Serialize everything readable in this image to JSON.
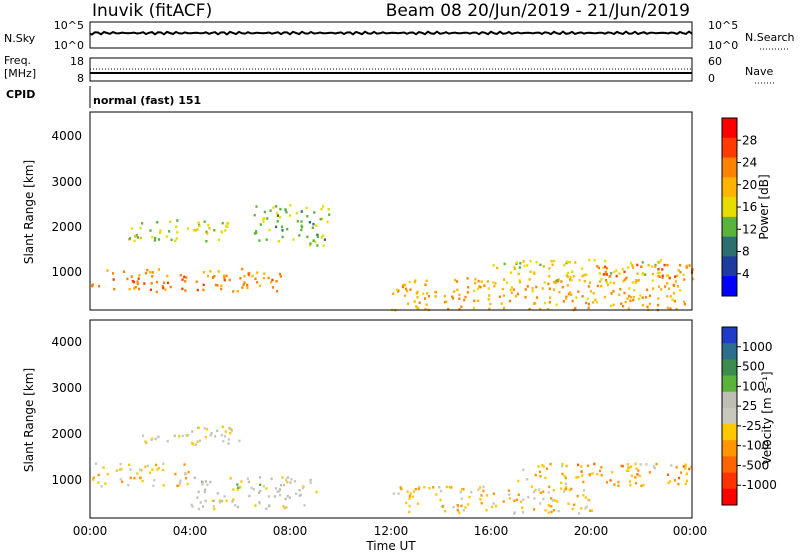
{
  "header": {
    "radar": "Inuvik (fitACF)",
    "beam_date": "Beam 08  20/Jun/2019 - 21/Jun/2019"
  },
  "summary": {
    "nsky_label": "N.Sky",
    "nsky_ticks": [
      "10^5",
      "10^0"
    ],
    "nsearch_label": "N.Search",
    "nsearch_ticks": [
      "10^5",
      "10^0"
    ],
    "freq_label_1": "Freq.",
    "freq_label_2": "[MHz]",
    "freq_ticks": [
      "18",
      "8"
    ],
    "nave_label": "Nave",
    "nave_ticks": [
      "60",
      "0"
    ],
    "cpid_label": "CPID",
    "cpid_value": "normal (fast) 151"
  },
  "axes": {
    "ylabel": "Slant Range [km]",
    "xlabel": "Time UT",
    "x_ticks": [
      "00:00",
      "04:00",
      "08:00",
      "12:00",
      "16:00",
      "20:00",
      "00:00"
    ],
    "y_ticks": [
      "4000",
      "3000",
      "2000",
      "1000"
    ]
  },
  "colorbars": {
    "power": {
      "label": "Power [dB]",
      "ticks": [
        "28",
        "24",
        "20",
        "16",
        "12",
        "8",
        "4"
      ],
      "colors": [
        "#ff0000",
        "#ff3c00",
        "#ff8200",
        "#ffb400",
        "#e6dc00",
        "#5ab43c",
        "#2d6e6e",
        "#1e3ca0",
        "#0000ff"
      ]
    },
    "velocity": {
      "label": "Velocity [m s⁻¹]",
      "ticks": [
        "1000",
        "500",
        "100",
        "25",
        "-25",
        "-100",
        "-500",
        "-1000"
      ],
      "colors": [
        "#1e3cc8",
        "#2d6e8c",
        "#3c8c50",
        "#5ab43c",
        "#bebeb4",
        "#c8c8be",
        "#ffc800",
        "#ff9600",
        "#ff6400",
        "#ff3200",
        "#ff0000"
      ]
    }
  },
  "chart_data": [
    {
      "type": "line",
      "title": "N.Sky / N.Search",
      "y_scale": "log",
      "ylim": [
        1,
        100000
      ],
      "x": [
        "00:00",
        "24:00"
      ],
      "series": [
        {
          "name": "N.Sky",
          "values": [
            100,
            100
          ]
        },
        {
          "name": "N.Search",
          "values": [
            100,
            100
          ]
        }
      ]
    },
    {
      "type": "line",
      "title": "Freq. / Nave",
      "ylim_left": [
        8,
        18
      ],
      "ylim_right": [
        0,
        60
      ],
      "series": [
        {
          "name": "Freq. [MHz]",
          "values": [
            10.5,
            10.5
          ]
        },
        {
          "name": "Nave",
          "values": [
            13,
            13
          ]
        }
      ]
    },
    {
      "type": "heatmap",
      "title": "Power [dB]",
      "xlim_hours": [
        0,
        24
      ],
      "ylim_km": [
        180,
        4500
      ],
      "value_range": [
        0,
        30
      ],
      "patches": [
        {
          "t0": 0.0,
          "t1": 7.6,
          "r0": 600,
          "r1": 1100,
          "v": 22
        },
        {
          "t0": 1.5,
          "t1": 5.5,
          "r0": 1700,
          "r1": 2200,
          "v": 14
        },
        {
          "t0": 6.5,
          "t1": 9.5,
          "r0": 1600,
          "r1": 2500,
          "v": 12
        },
        {
          "t0": 12.0,
          "t1": 24.0,
          "r0": 200,
          "r1": 900,
          "v": 20
        },
        {
          "t0": 16.0,
          "t1": 24.0,
          "r0": 800,
          "r1": 1300,
          "v": 16
        },
        {
          "t0": 20.0,
          "t1": 24.0,
          "r0": 900,
          "r1": 1200,
          "v": 24
        }
      ]
    },
    {
      "type": "heatmap",
      "title": "Velocity [m s⁻¹]",
      "xlim_hours": [
        0,
        24
      ],
      "ylim_km": [
        180,
        4500
      ],
      "value_range": [
        -1000,
        1000
      ],
      "patches": [
        {
          "t0": 0.0,
          "t1": 4.0,
          "r0": 900,
          "r1": 1400,
          "v": -150
        },
        {
          "t0": 2.0,
          "t1": 6.0,
          "r0": 1800,
          "r1": 2200,
          "v": 0
        },
        {
          "t0": 4.0,
          "t1": 9.0,
          "r0": 400,
          "r1": 1100,
          "v": 60
        },
        {
          "t0": 12.0,
          "t1": 20.0,
          "r0": 300,
          "r1": 900,
          "v": -200
        },
        {
          "t0": 17.0,
          "t1": 24.0,
          "r0": 900,
          "r1": 1400,
          "v": -300
        }
      ]
    }
  ]
}
